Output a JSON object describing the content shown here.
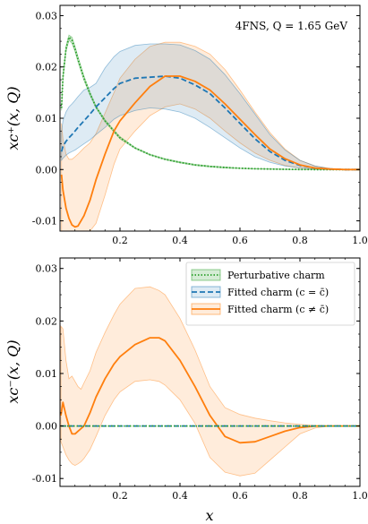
{
  "colors": {
    "perturbative": "#2ca02c",
    "fitted_sym": "#1f77b4",
    "fitted_asym": "#ff7f0e"
  },
  "chart_data": [
    {
      "type": "line",
      "panel": "top",
      "annotation": "4FNS, Q = 1.65 GeV",
      "xlabel": "x",
      "ylabel": "xc⁺(x, Q)",
      "xlim": [
        0.0,
        1.0
      ],
      "ylim": [
        -0.012,
        0.032
      ],
      "xticks": [
        "0.2",
        "0.4",
        "0.6",
        "0.8",
        "1.0"
      ],
      "yticks": [
        "-0.01",
        "0.00",
        "0.01",
        "0.02",
        "0.03"
      ],
      "x": [
        0.005,
        0.01,
        0.02,
        0.03,
        0.04,
        0.05,
        0.06,
        0.08,
        0.1,
        0.12,
        0.15,
        0.18,
        0.2,
        0.25,
        0.3,
        0.35,
        0.4,
        0.45,
        0.5,
        0.55,
        0.6,
        0.65,
        0.7,
        0.75,
        0.8,
        0.85,
        0.9,
        0.95,
        1.0
      ],
      "series": [
        {
          "name": "Perturbative charm",
          "style": "dotted",
          "values": [
            0.012,
            0.018,
            0.0235,
            0.0258,
            0.0252,
            0.0235,
            0.0215,
            0.0178,
            0.0148,
            0.0122,
            0.0095,
            0.0075,
            0.0062,
            0.0042,
            0.0029,
            0.002,
            0.0014,
            0.0009,
            0.0006,
            0.0004,
            0.00025,
            0.00015,
            0.0001,
            5e-05,
            2e-05,
            0.0,
            0.0,
            0.0,
            0.0
          ],
          "lower": [
            0.0115,
            0.0175,
            0.023,
            0.0252,
            0.0246,
            0.023,
            0.021,
            0.0174,
            0.0145,
            0.012,
            0.0093,
            0.0073,
            0.006,
            0.0041,
            0.0028,
            0.0019,
            0.0013,
            0.0008,
            0.0005,
            0.0003,
            0.0002,
            0.0001,
            5e-05,
            2e-05,
            0.0,
            0.0,
            0.0,
            0.0,
            0.0
          ],
          "upper": [
            0.0125,
            0.0185,
            0.024,
            0.0262,
            0.0258,
            0.024,
            0.022,
            0.0182,
            0.0151,
            0.0124,
            0.0097,
            0.0077,
            0.0064,
            0.0043,
            0.003,
            0.0021,
            0.0015,
            0.001,
            0.0007,
            0.0005,
            0.0003,
            0.0002,
            0.00015,
            8e-05,
            4e-05,
            1e-05,
            0.0,
            0.0,
            0.0
          ]
        },
        {
          "name": "Fitted charm (c = c̄)",
          "style": "dashed",
          "values": [
            0.0035,
            0.0045,
            0.0055,
            0.0062,
            0.0068,
            0.0075,
            0.0082,
            0.0095,
            0.0108,
            0.0122,
            0.014,
            0.0158,
            0.0168,
            0.0178,
            0.018,
            0.0182,
            0.0178,
            0.0165,
            0.0148,
            0.012,
            0.009,
            0.006,
            0.0035,
            0.0018,
            0.0008,
            0.0003,
            0.0001,
            0.0,
            0.0
          ],
          "lower": [
            0.0018,
            0.0022,
            0.0028,
            0.0032,
            0.0035,
            0.0038,
            0.0042,
            0.005,
            0.0058,
            0.0068,
            0.0082,
            0.0098,
            0.0105,
            0.0115,
            0.012,
            0.0118,
            0.0112,
            0.01,
            0.0082,
            0.0062,
            0.0042,
            0.0025,
            0.0014,
            0.0007,
            0.0003,
            0.0001,
            0.0,
            0.0,
            0.0
          ],
          "upper": [
            0.0075,
            0.0095,
            0.0112,
            0.0122,
            0.0128,
            0.0135,
            0.0142,
            0.0155,
            0.016,
            0.0168,
            0.0198,
            0.022,
            0.023,
            0.0242,
            0.0245,
            0.0245,
            0.0243,
            0.0232,
            0.0215,
            0.0185,
            0.0148,
            0.0108,
            0.0068,
            0.0038,
            0.0018,
            0.0007,
            0.0002,
            0.0,
            0.0
          ]
        },
        {
          "name": "Fitted charm (c ≠ c̄)",
          "style": "solid",
          "values": [
            -0.001,
            -0.004,
            -0.0075,
            -0.0095,
            -0.0108,
            -0.0112,
            -0.011,
            -0.009,
            -0.006,
            -0.002,
            0.003,
            0.0075,
            0.0095,
            0.013,
            0.0162,
            0.0182,
            0.0182,
            0.0172,
            0.0155,
            0.0128,
            0.0098,
            0.0068,
            0.004,
            0.0021,
            0.0009,
            0.0003,
            0.0001,
            0.0,
            0.0
          ],
          "lower": [
            -0.012,
            -0.012,
            -0.012,
            -0.012,
            -0.012,
            -0.012,
            -0.012,
            -0.012,
            -0.012,
            -0.0105,
            -0.005,
            0.001,
            0.004,
            0.0075,
            0.0105,
            0.0122,
            0.0128,
            0.0118,
            0.01,
            0.0075,
            0.0052,
            0.0032,
            0.0018,
            0.0008,
            0.0003,
            0.0001,
            0.0,
            0.0,
            0.0
          ],
          "upper": [
            0.009,
            0.006,
            0.003,
            0.002,
            0.002,
            0.0025,
            0.003,
            0.0042,
            0.0052,
            0.007,
            0.011,
            0.015,
            0.0178,
            0.0215,
            0.024,
            0.0248,
            0.0248,
            0.024,
            0.0225,
            0.0195,
            0.0155,
            0.0112,
            0.0072,
            0.004,
            0.0018,
            0.0007,
            0.0002,
            0.0,
            0.0
          ]
        }
      ]
    },
    {
      "type": "line",
      "panel": "bottom",
      "xlabel": "x",
      "ylabel": "xc⁻(x, Q)",
      "xlim": [
        0.0,
        1.0
      ],
      "ylim": [
        -0.0115,
        0.032
      ],
      "xticks": [
        "0.2",
        "0.4",
        "0.6",
        "0.8",
        "1.0"
      ],
      "yticks": [
        "-0.01",
        "0.00",
        "0.01",
        "0.02",
        "0.03"
      ],
      "legend": {
        "position": "top-right",
        "entries": [
          "Perturbative charm",
          "Fitted charm (c = c̄)",
          "Fitted charm (c ≠ c̄)"
        ]
      },
      "x": [
        0.003,
        0.01,
        0.02,
        0.03,
        0.04,
        0.05,
        0.06,
        0.07,
        0.08,
        0.1,
        0.12,
        0.15,
        0.18,
        0.2,
        0.25,
        0.3,
        0.33,
        0.35,
        0.4,
        0.45,
        0.5,
        0.55,
        0.6,
        0.65,
        0.7,
        0.75,
        0.8,
        0.85,
        0.9,
        1.0
      ],
      "series": [
        {
          "name": "Perturbative charm",
          "style": "dotted",
          "values": [
            0.0,
            0.0,
            0.0,
            0.0,
            0.0,
            0.0,
            0.0,
            0.0,
            0.0,
            0.0,
            0.0,
            0.0,
            0.0,
            0.0,
            0.0,
            0.0,
            0.0,
            0.0,
            0.0,
            0.0,
            0.0,
            0.0,
            0.0,
            0.0,
            0.0,
            0.0,
            0.0,
            0.0,
            0.0,
            0.0
          ]
        },
        {
          "name": "Fitted charm (c = c̄)",
          "style": "dashed",
          "values": [
            0.0,
            0.0,
            0.0,
            0.0,
            0.0,
            0.0,
            0.0,
            0.0,
            0.0,
            0.0,
            0.0,
            0.0,
            0.0,
            0.0,
            0.0,
            0.0,
            0.0,
            0.0,
            0.0,
            0.0,
            0.0,
            0.0,
            0.0,
            0.0,
            0.0,
            0.0,
            0.0,
            0.0,
            0.0,
            0.0
          ]
        },
        {
          "name": "Fitted charm (c ≠ c̄)",
          "style": "solid",
          "values": [
            0.002,
            0.0045,
            0.002,
            0.0,
            -0.0015,
            -0.0015,
            -0.001,
            -0.0005,
            0.0,
            0.0025,
            0.0055,
            0.009,
            0.0118,
            0.0132,
            0.0155,
            0.0168,
            0.0168,
            0.0162,
            0.0125,
            0.0075,
            0.002,
            -0.002,
            -0.0032,
            -0.003,
            -0.002,
            -0.001,
            -0.0003,
            0.0,
            0.0,
            0.0
          ],
          "lower": [
            -0.003,
            -0.004,
            -0.0055,
            -0.0065,
            -0.0072,
            -0.0075,
            -0.0072,
            -0.0068,
            -0.0062,
            -0.0045,
            -0.002,
            0.002,
            0.005,
            0.0065,
            0.0085,
            0.0088,
            0.0085,
            0.0078,
            0.005,
            0.0005,
            -0.006,
            -0.0088,
            -0.0095,
            -0.009,
            -0.0065,
            -0.004,
            -0.0015,
            -0.0004,
            0.0,
            0.0
          ],
          "upper": [
            0.019,
            0.0185,
            0.0125,
            0.009,
            0.0095,
            0.0085,
            0.0075,
            0.007,
            0.0082,
            0.0105,
            0.014,
            0.0178,
            0.0212,
            0.0232,
            0.0262,
            0.0265,
            0.0258,
            0.025,
            0.0205,
            0.0145,
            0.0075,
            0.0035,
            0.0022,
            0.0015,
            0.001,
            0.0006,
            0.0003,
            0.0001,
            0.0,
            0.0
          ]
        }
      ]
    }
  ]
}
